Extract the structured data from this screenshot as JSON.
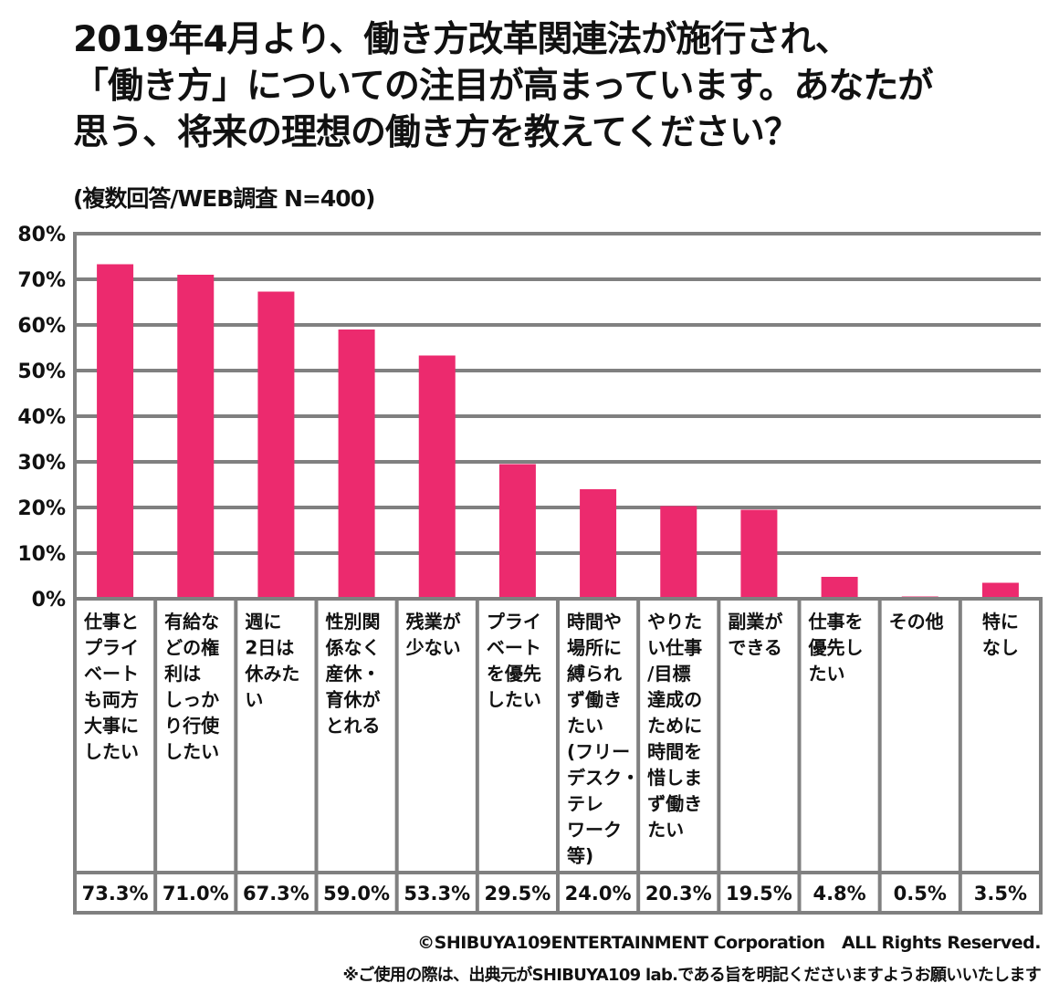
{
  "title_lines": [
    "2019年4月より、働き方改革関連法が施行され、",
    "「働き方」についての注目が高まっています。あなたが",
    "思う、将来の理想の働き方を教えてください？"
  ],
  "subtitle": "(複数回答/WEB調査 N=400)",
  "footer": {
    "copyright": "©SHIBUYA109ENTERTAINMENT Corporation　ALL Rights Reserved.",
    "note": "※ご使用の際は、出典元がSHIBUYA109 lab.である旨を明記くださいますようお願いいたします"
  },
  "colors": {
    "bar": "#EC2A6E",
    "grid": "#808080"
  },
  "chart_data": {
    "type": "bar",
    "title": "2019年4月より、働き方改革関連法が施行され、「働き方」についての注目が高まっています。あなたが思う、将来の理想の働き方を教えてください？",
    "subtitle": "(複数回答/WEB調査 N=400)",
    "xlabel": "",
    "ylabel": "",
    "ylim": [
      0,
      80
    ],
    "yticks": [
      0,
      10,
      20,
      30,
      40,
      50,
      60,
      70,
      80
    ],
    "ytick_labels": [
      "0%",
      "10%",
      "20%",
      "30%",
      "40%",
      "50%",
      "60%",
      "70%",
      "80%"
    ],
    "grid": true,
    "legend": "none",
    "categories": [
      [
        "仕事と",
        "プライ",
        "ベート",
        "も両方",
        "大事に",
        "したい"
      ],
      [
        "有給な",
        "どの権",
        "利は",
        "しっか",
        "り行使",
        "したい"
      ],
      [
        "週に",
        "2日は",
        "休みた",
        "い"
      ],
      [
        "性別関",
        "係なく",
        "産休・",
        "育休が",
        "とれる"
      ],
      [
        "残業が",
        "少ない"
      ],
      [
        "プライ",
        "ベート",
        "を優先",
        "したい"
      ],
      [
        "時間や",
        "場所に",
        "縛られ",
        "ず働き",
        "たい",
        "(フリー",
        "デスク・",
        "テレ",
        "ワーク",
        "等)"
      ],
      [
        "やりた",
        "い仕事",
        "/目標",
        "達成の",
        "ために",
        "時間を",
        "惜しま",
        "ず働き",
        "たい"
      ],
      [
        "副業が",
        "できる"
      ],
      [
        "仕事を",
        "優先し",
        "たい"
      ],
      [
        "その他"
      ],
      [
        "特に",
        "なし"
      ]
    ],
    "values": [
      73.3,
      71.0,
      67.3,
      59.0,
      53.3,
      29.5,
      24.0,
      20.3,
      19.5,
      4.8,
      0.5,
      3.5
    ],
    "value_labels": [
      "73.3%",
      "71.0%",
      "67.3%",
      "59.0%",
      "53.3%",
      "29.5%",
      "24.0%",
      "20.3%",
      "19.5%",
      "4.8%",
      "0.5%",
      "3.5%"
    ]
  }
}
